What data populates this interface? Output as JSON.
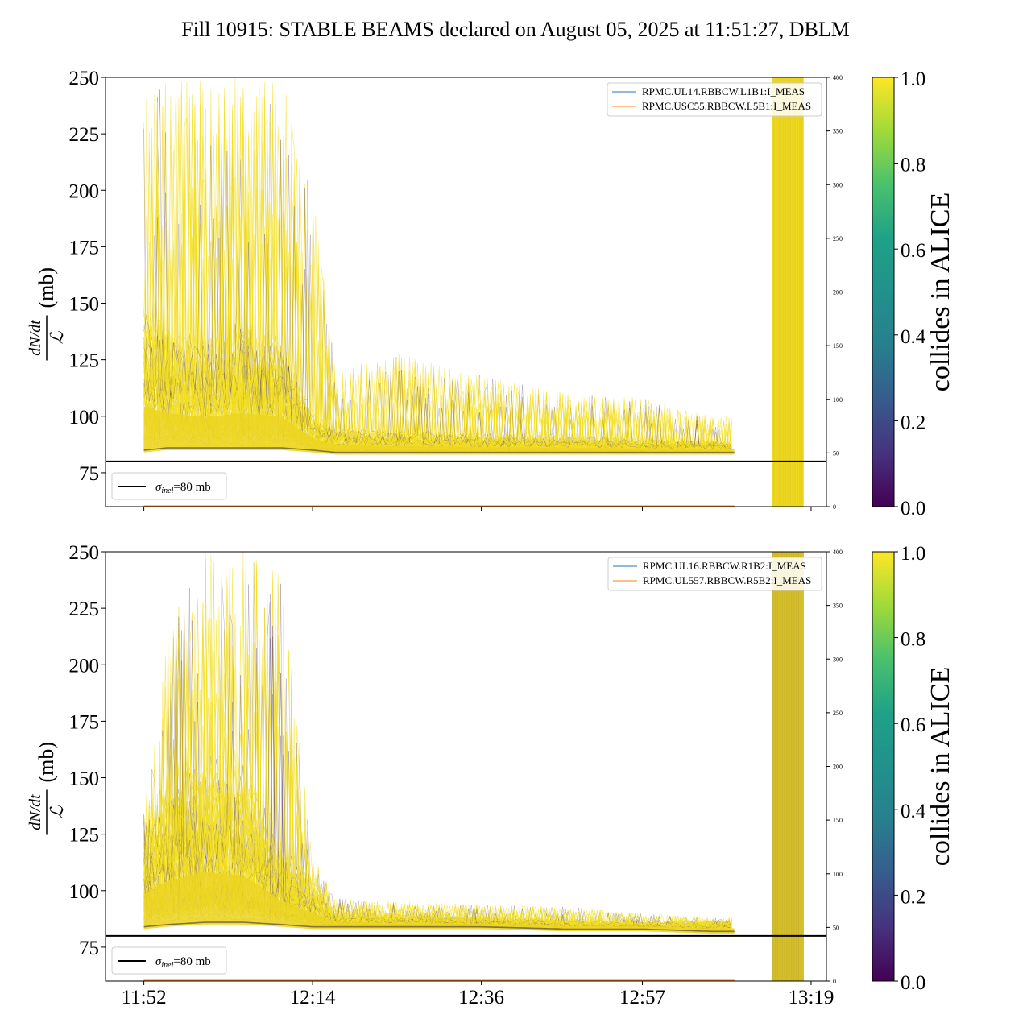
{
  "figure": {
    "title": "Fill 10915: STABLE BEAMS declared on August 05, 2025 at 11:51:27, DBLM"
  },
  "chart_data": [
    {
      "type": "line",
      "panel": "top",
      "ylabel_fraction_num": "dN/dt",
      "ylabel_fraction_den": "ℒ",
      "ylabel_unit": "(mb)",
      "ylim": [
        60,
        250
      ],
      "yticks": [
        75,
        100,
        125,
        150,
        175,
        200,
        225,
        250
      ],
      "y2lim": [
        0,
        400
      ],
      "y2ticks": [
        0,
        50,
        100,
        150,
        200,
        250,
        300,
        350,
        400
      ],
      "xlim": [
        "11:47",
        "13:21"
      ],
      "xticks": [
        "11:52",
        "12:14",
        "12:36",
        "12:57",
        "13:19"
      ],
      "hline": {
        "y": 80,
        "label_sym": "σ",
        "label_sub": "inel",
        "label_val": "=80 mb",
        "color": "#000000"
      },
      "secondary_series": [
        {
          "name": "RPMC.UL14.RBBCW.L1B1:I_MEAS",
          "color": "#1f77b4",
          "y_approx": 0
        },
        {
          "name": "RPMC.USC55.RBBCW.L5B1:I_MEAS",
          "color": "#ff7f0e",
          "y_approx": 0
        }
      ],
      "envelope_description_points": {
        "time": [
          "11:52",
          "11:55",
          "12:00",
          "12:05",
          "12:10",
          "12:14",
          "12:17",
          "12:25",
          "12:36",
          "12:47",
          "12:57",
          "13:06"
        ],
        "baseline_mb": [
          85,
          86,
          86,
          86,
          86,
          85,
          84,
          84,
          84,
          84,
          84,
          84
        ],
        "typical_mb": [
          140,
          130,
          125,
          130,
          125,
          100,
          93,
          92,
          91,
          90,
          89,
          88
        ],
        "peak_mb": [
          250,
          250,
          250,
          250,
          250,
          200,
          120,
          128,
          118,
          110,
          108,
          100
        ]
      },
      "band": {
        "from": "13:14",
        "to": "13:18",
        "color": "#e8d21f"
      },
      "colorbar": {
        "label": "collides in ALICE",
        "range": [
          0.0,
          1.0
        ],
        "ticks": [
          "0.0",
          "0.2",
          "0.4",
          "0.6",
          "0.8",
          "1.0"
        ],
        "colormap": "viridis"
      }
    },
    {
      "type": "line",
      "panel": "bottom",
      "ylabel_fraction_num": "dN/dt",
      "ylabel_fraction_den": "ℒ",
      "ylabel_unit": "(mb)",
      "ylim": [
        60,
        250
      ],
      "yticks": [
        75,
        100,
        125,
        150,
        175,
        200,
        225,
        250
      ],
      "y2lim": [
        0,
        400
      ],
      "y2ticks": [
        0,
        50,
        100,
        150,
        200,
        250,
        300,
        350,
        400
      ],
      "xlim": [
        "11:47",
        "13:21"
      ],
      "xticks": [
        "11:52",
        "12:14",
        "12:36",
        "12:57",
        "13:19"
      ],
      "hline": {
        "y": 80,
        "label_sym": "σ",
        "label_sub": "inel",
        "label_val": "=80 mb",
        "color": "#000000"
      },
      "secondary_series": [
        {
          "name": "RPMC.UL16.RBBCW.R1B2:I_MEAS",
          "color": "#1f77b4",
          "y_approx": 0
        },
        {
          "name": "RPMC.UL557.RBBCW.R5B2:I_MEAS",
          "color": "#ff7f0e",
          "y_approx": 0
        }
      ],
      "envelope_description_points": {
        "time": [
          "11:52",
          "11:55",
          "12:00",
          "12:05",
          "12:10",
          "12:14",
          "12:17",
          "12:25",
          "12:36",
          "12:47",
          "12:57",
          "13:06"
        ],
        "baseline_mb": [
          84,
          85,
          86,
          86,
          85,
          84,
          84,
          84,
          84,
          83,
          83,
          82
        ],
        "typical_mb": [
          125,
          140,
          150,
          145,
          115,
          102,
          90,
          89,
          88,
          87,
          86,
          86
        ],
        "peak_mb": [
          135,
          215,
          250,
          250,
          240,
          115,
          97,
          95,
          94,
          93,
          90,
          88
        ]
      },
      "band": {
        "from": "13:14",
        "to": "13:18",
        "color": "#d4be2a"
      },
      "colorbar": {
        "label": "collides in ALICE",
        "range": [
          0.0,
          1.0
        ],
        "ticks": [
          "0.0",
          "0.2",
          "0.4",
          "0.6",
          "0.8",
          "1.0"
        ],
        "colormap": "viridis"
      }
    }
  ]
}
